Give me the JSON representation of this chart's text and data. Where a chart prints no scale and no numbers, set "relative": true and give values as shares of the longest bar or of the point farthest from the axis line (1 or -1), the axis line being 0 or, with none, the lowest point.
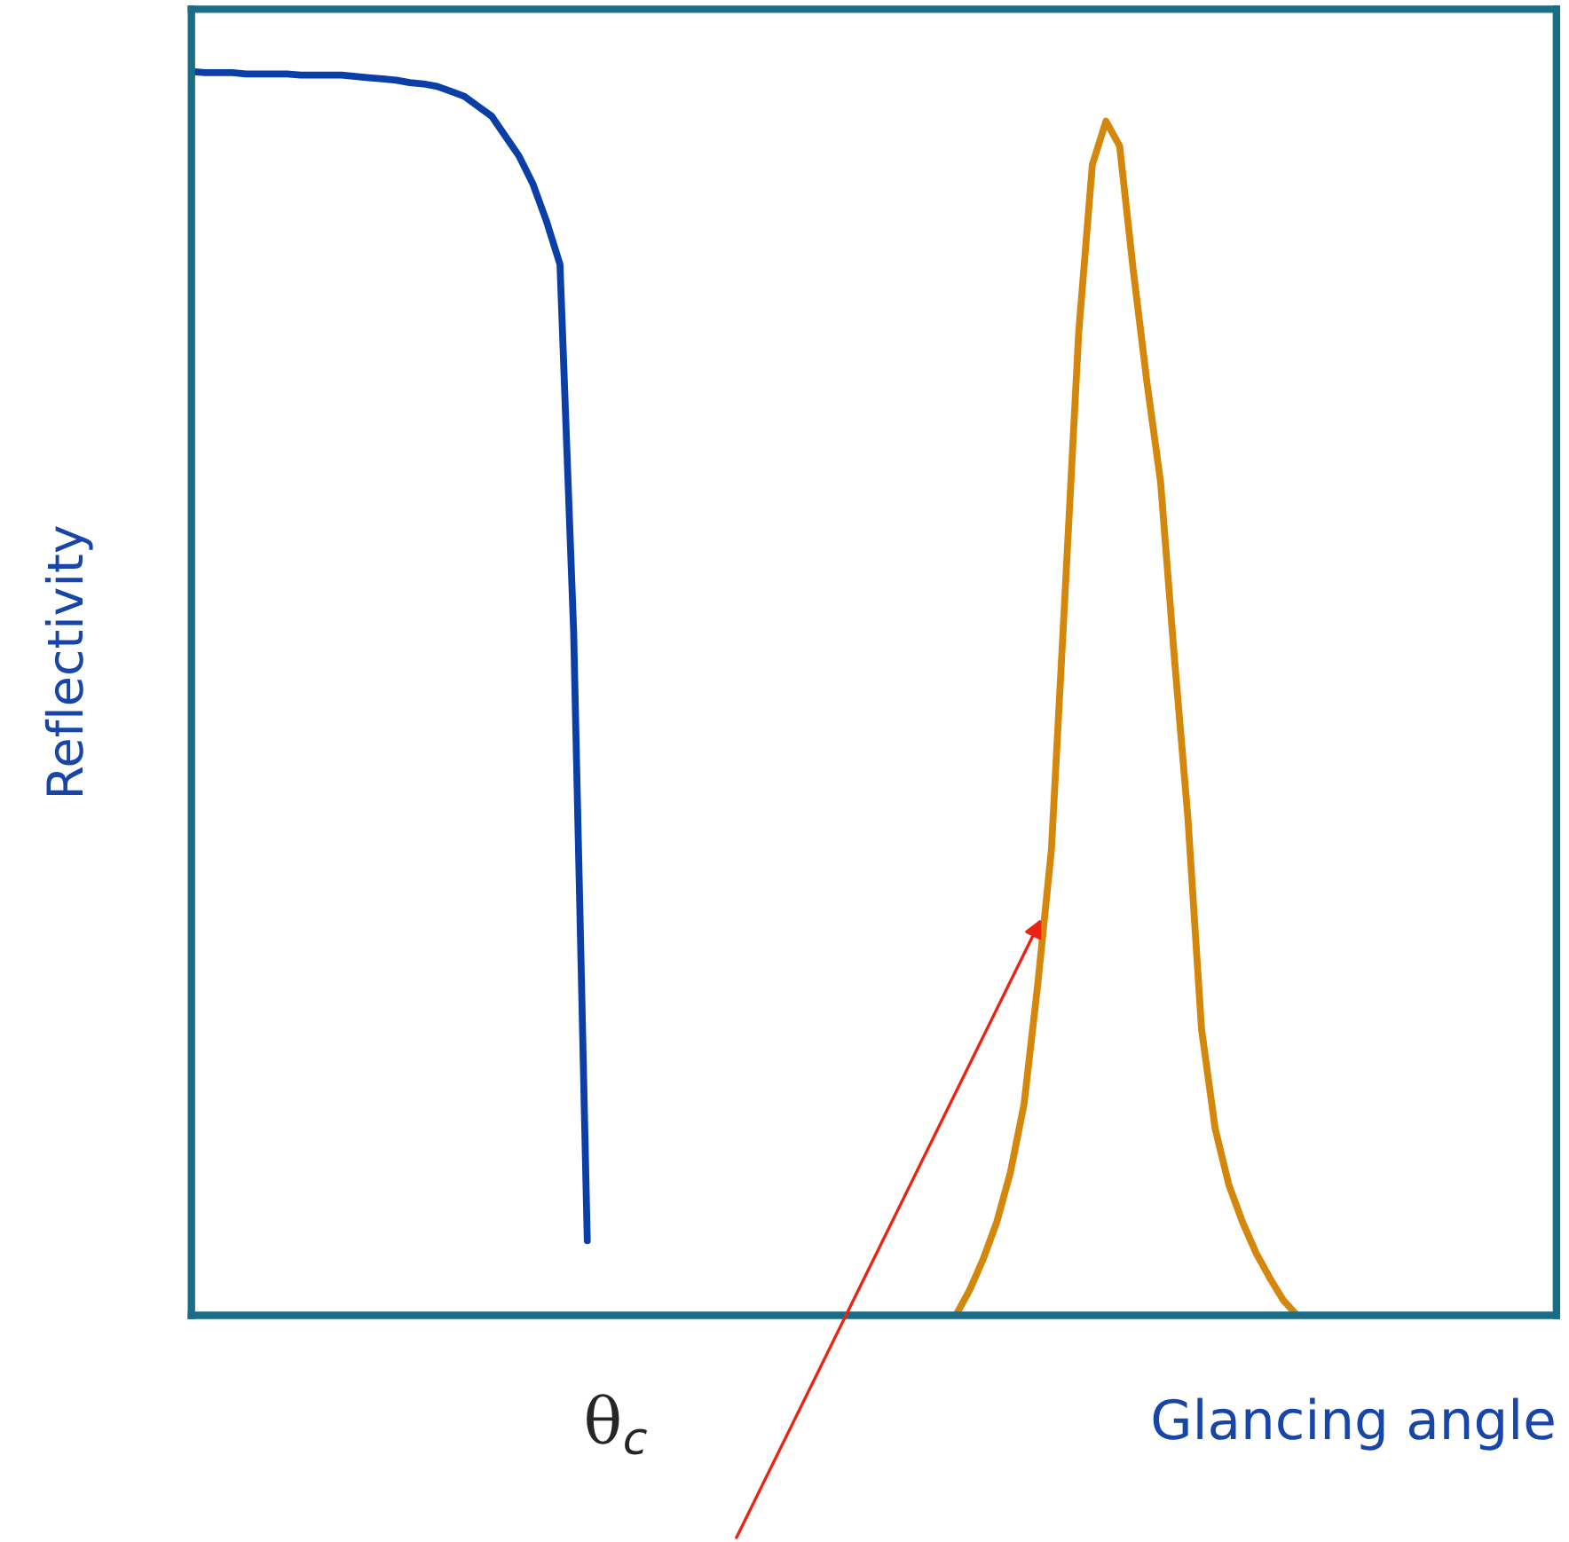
{
  "chart_data": {
    "type": "line",
    "relative": true,
    "xlabel": "Glancing angle",
    "ylabel": "Reflectivity",
    "annotations": [
      "θ$_{c}$"
    ],
    "legend": false,
    "marker": "none",
    "line_style": "solid",
    "categories": [
      null,
      null,
      null,
      null,
      null,
      null,
      null,
      null,
      null,
      null,
      null,
      null,
      null,
      null,
      null,
      null,
      null,
      null,
      null,
      null,
      null,
      null,
      null,
      null,
      null,
      null,
      null,
      null,
      null,
      null,
      null,
      null,
      null,
      null,
      null,
      null,
      null,
      null,
      null,
      null,
      null,
      null,
      null,
      null,
      null,
      null,
      null,
      null,
      null,
      null,
      null,
      null,
      null,
      null,
      null,
      null,
      null,
      null,
      null,
      null,
      null,
      null,
      null,
      null,
      null,
      null,
      null,
      null,
      null,
      null,
      null,
      null,
      null,
      null,
      null,
      null,
      null,
      null,
      null,
      null,
      null,
      null,
      null,
      null,
      null,
      null,
      null,
      null,
      null,
      null,
      null,
      null,
      null,
      null,
      null,
      null,
      null,
      null,
      null,
      null,
      null
    ],
    "series": [
      {
        "color": "#0a3fa8",
        "values": [
          1.0,
          0.999,
          0.999,
          0.999,
          0.998,
          0.998,
          0.998,
          0.998,
          0.997,
          0.997,
          0.997,
          0.997,
          0.996,
          0.995,
          0.994,
          0.993,
          0.991,
          0.99,
          0.988,
          0.984,
          0.98,
          0.972,
          0.964,
          0.948,
          0.932,
          0.91,
          0.88,
          0.845,
          0.55,
          0.06,
          null,
          null,
          null,
          null,
          null,
          null,
          null,
          null,
          null,
          null,
          null,
          null,
          null,
          null,
          null,
          null,
          null,
          null,
          null,
          null,
          null,
          null,
          null,
          null,
          null,
          null,
          null,
          null,
          null,
          null,
          null,
          null,
          null,
          null,
          null,
          null,
          null,
          null,
          null,
          null,
          null,
          null,
          null,
          null,
          null,
          null,
          null,
          null,
          null,
          null,
          null,
          null,
          null,
          null,
          null,
          null,
          null,
          null,
          null,
          null,
          null,
          null,
          null,
          null,
          null,
          null,
          null,
          null,
          null,
          null,
          null
        ]
      },
      {
        "color": "#d4870a",
        "values": [
          null,
          null,
          null,
          null,
          null,
          null,
          null,
          null,
          null,
          null,
          null,
          null,
          null,
          null,
          null,
          null,
          null,
          null,
          null,
          null,
          null,
          null,
          null,
          null,
          null,
          null,
          null,
          null,
          null,
          null,
          null,
          null,
          null,
          null,
          null,
          null,
          null,
          null,
          null,
          null,
          null,
          null,
          null,
          null,
          null,
          null,
          null,
          null,
          null,
          null,
          null,
          null,
          null,
          null,
          null,
          null,
          0,
          0.02,
          0.045,
          0.075,
          0.115,
          0.17,
          0.266,
          0.374,
          0.58,
          0.79,
          0.925,
          0.96,
          0.94,
          0.84,
          0.75,
          0.67,
          0.53,
          0.4,
          0.23,
          0.15,
          0.105,
          0.075,
          0.05,
          0.03,
          0.012,
          0,
          null,
          null,
          null,
          null,
          null,
          null,
          null,
          null,
          null,
          null,
          null,
          null,
          null,
          null,
          null,
          null,
          null,
          null,
          null
        ]
      }
    ]
  }
}
